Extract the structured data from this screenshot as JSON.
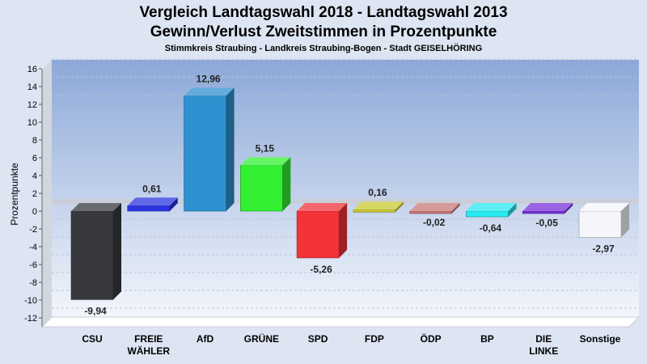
{
  "header": {
    "title_line1": "Vergleich Landtagswahl 2018 - Landtagswahl 2013",
    "title_line2": "Gewinn/Verlust Zweitstimmen in Prozentpunkte",
    "subtitle": "Stimmkreis Straubing - Landkreis Straubing-Bogen - Stadt GEISELHÖRING"
  },
  "chart_data": {
    "type": "bar",
    "title": "Vergleich Landtagswahl 2018 - Landtagswahl 2013 / Gewinn/Verlust Zweitstimmen in Prozentpunkte",
    "subtitle": "Stimmkreis Straubing - Landkreis Straubing-Bogen - Stadt GEISELHÖRING",
    "xlabel": "",
    "ylabel": "Prozentpunkte",
    "ylim": [
      -13,
      17
    ],
    "yticks": [
      16,
      14,
      12,
      10,
      8,
      6,
      4,
      2,
      0,
      -2,
      -4,
      -6,
      -8,
      -10,
      -12
    ],
    "grid": true,
    "categories": [
      [
        "CSU"
      ],
      [
        "FREIE",
        "WÄHLER"
      ],
      [
        "AfD"
      ],
      [
        "GRÜNE"
      ],
      [
        "SPD"
      ],
      [
        "FDP"
      ],
      [
        "ÖDP"
      ],
      [
        "BP"
      ],
      [
        "DIE",
        "LINKE"
      ],
      [
        "Sonstige"
      ]
    ],
    "values": [
      -9.94,
      0.61,
      12.96,
      5.15,
      -5.26,
      0.16,
      -0.02,
      -0.64,
      -0.05,
      -2.97
    ],
    "value_labels": [
      "-9,94",
      "0,61",
      "12,96",
      "5,15",
      "-5,26",
      "0,16",
      "-0,02",
      "-0,64",
      "-0,05",
      "-2,97"
    ],
    "colors": [
      "#38393d",
      "#2c35e0",
      "#2e92d0",
      "#33f033",
      "#f23338",
      "#c9c930",
      "#c87878",
      "#28e8f0",
      "#7a30d8",
      "#f4f6fb"
    ]
  }
}
